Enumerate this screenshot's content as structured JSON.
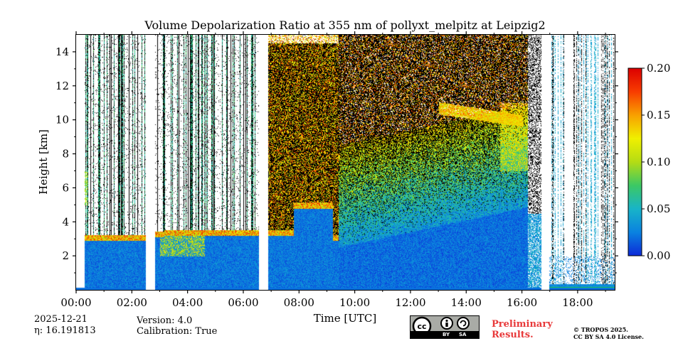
{
  "chart_data": {
    "type": "heatmap",
    "title": "Volume Depolarization Ratio at 355 nm of pollyxt_melpitz at Leipzig2",
    "xlabel": "Time [UTC]",
    "ylabel": "Height [km]",
    "x_range_hours": [
      0,
      19.33
    ],
    "ylim": [
      0,
      15
    ],
    "x_ticks": [
      {
        "label": "00:00",
        "hour": 0
      },
      {
        "label": "02:00",
        "hour": 2
      },
      {
        "label": "04:00",
        "hour": 4
      },
      {
        "label": "06:00",
        "hour": 6
      },
      {
        "label": "08:00",
        "hour": 8
      },
      {
        "label": "10:00",
        "hour": 10
      },
      {
        "label": "12:00",
        "hour": 12
      },
      {
        "label": "14:00",
        "hour": 14
      },
      {
        "label": "16:00",
        "hour": 16
      },
      {
        "label": "18:00",
        "hour": 18
      }
    ],
    "y_ticks": [
      {
        "label": "2",
        "value": 2
      },
      {
        "label": "4",
        "value": 4
      },
      {
        "label": "6",
        "value": 6
      },
      {
        "label": "8",
        "value": 8
      },
      {
        "label": "10",
        "value": 10
      },
      {
        "label": "12",
        "value": 12
      },
      {
        "label": "14",
        "value": 14
      }
    ],
    "colorbar": {
      "range": [
        0.0,
        0.2
      ],
      "ticks": [
        {
          "label": "0.00",
          "value": 0.0
        },
        {
          "label": "0.05",
          "value": 0.05
        },
        {
          "label": "0.10",
          "value": 0.1
        },
        {
          "label": "0.15",
          "value": 0.15
        },
        {
          "label": "0.20",
          "value": 0.2
        }
      ],
      "colormap": [
        "#0c2ad8",
        "#0a82e0",
        "#18b4c8",
        "#3cc864",
        "#b4dc14",
        "#f0f000",
        "#f8a000",
        "#f83c00",
        "#dc0000"
      ]
    },
    "data_gaps_hours": [
      [
        2.5,
        2.82
      ],
      [
        6.55,
        6.88
      ],
      [
        16.68,
        16.98
      ]
    ],
    "cloud_base_segments_km": [
      {
        "from_hour": 0.3,
        "to_hour": 2.5,
        "height": 3.0
      },
      {
        "from_hour": 2.82,
        "to_hour": 3.15,
        "height": 3.2
      },
      {
        "from_hour": 3.15,
        "to_hour": 6.55,
        "height": 3.3
      },
      {
        "from_hour": 6.88,
        "to_hour": 7.8,
        "height": 3.3
      },
      {
        "from_hour": 7.8,
        "to_hour": 9.2,
        "height": 4.9
      },
      {
        "from_hour": 9.2,
        "to_hour": 9.4,
        "height": 3.0
      }
    ],
    "cirrus_layer": {
      "from_hour": 13.0,
      "to_hour": 16.0,
      "bottom_km": 9.5,
      "top_km": 11.5
    }
  },
  "info": {
    "date": "2025-12-21",
    "eta": "η: 16.191813",
    "version": "Version: 4.0",
    "calibration": "Calibration: True"
  },
  "watermark": {
    "line1": "Preliminary",
    "line2": "Results.",
    "license1": "© TROPOS 2025.",
    "license2": "CC BY SA 4.0 License.",
    "cc_by": "BY",
    "cc_sa": "SA"
  }
}
